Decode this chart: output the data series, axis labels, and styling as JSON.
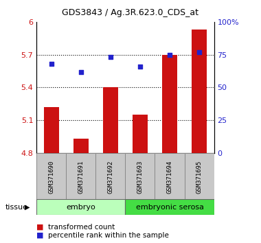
{
  "title": "GDS3843 / Ag.3R.623.0_CDS_at",
  "samples": [
    "GSM371690",
    "GSM371691",
    "GSM371692",
    "GSM371693",
    "GSM371694",
    "GSM371695"
  ],
  "transformed_counts": [
    5.22,
    4.93,
    5.4,
    5.15,
    5.7,
    5.93
  ],
  "percentile_ranks": [
    68,
    62,
    73,
    66,
    75,
    77
  ],
  "ylim_left": [
    4.8,
    6.0
  ],
  "ylim_right": [
    0,
    100
  ],
  "yticks_left": [
    4.8,
    5.1,
    5.4,
    5.7,
    6.0
  ],
  "yticks_right": [
    0,
    25,
    50,
    75,
    100
  ],
  "ytick_labels_left": [
    "4.8",
    "5.1",
    "5.4",
    "5.7",
    "6"
  ],
  "ytick_labels_right": [
    "0",
    "25",
    "50",
    "75",
    "100%"
  ],
  "hlines": [
    5.1,
    5.4,
    5.7
  ],
  "bar_color": "#cc1111",
  "dot_color": "#2222cc",
  "bar_width": 0.5,
  "tissue_groups": [
    {
      "label": "embryo",
      "indices": [
        0,
        1,
        2
      ],
      "color": "#bbffbb"
    },
    {
      "label": "embryonic serosa",
      "indices": [
        3,
        4,
        5
      ],
      "color": "#44dd44"
    }
  ],
  "legend_bar_label": "transformed count",
  "legend_dot_label": "percentile rank within the sample",
  "tissue_label": "tissue",
  "tick_label_color_left": "#cc1111",
  "tick_label_color_right": "#2222cc",
  "base_value": 4.8
}
